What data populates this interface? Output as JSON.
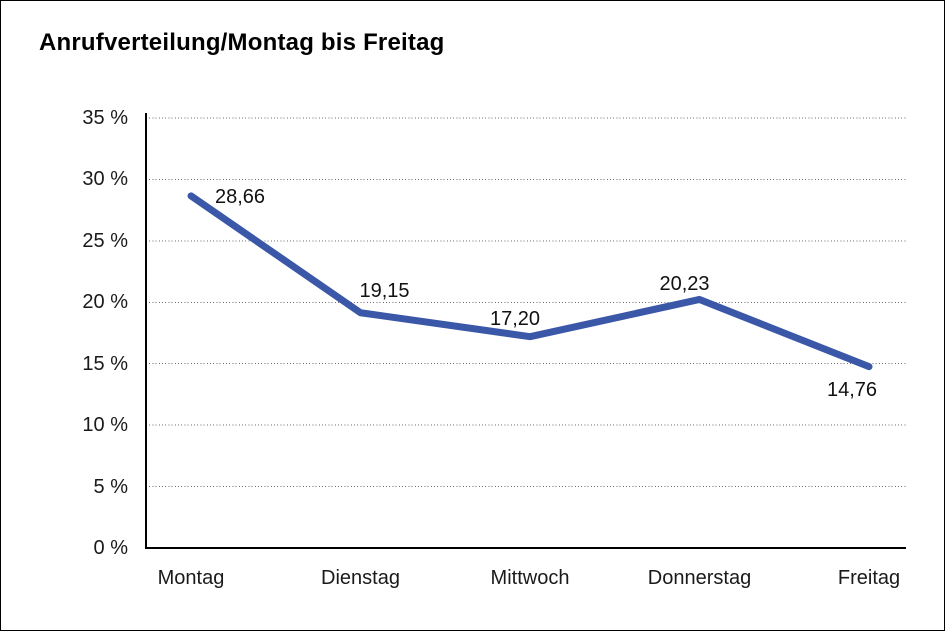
{
  "frame": {
    "background": "#ffffff",
    "border_color": "#000000"
  },
  "chart_data": {
    "type": "line",
    "title": "Anrufverteilung/Montag bis Freitag",
    "categories": [
      "Montag",
      "Dienstag",
      "Mittwoch",
      "Donnerstag",
      "Freitag"
    ],
    "series": [
      {
        "name": "Anrufverteilung",
        "values": [
          28.66,
          19.15,
          17.2,
          20.23,
          14.76
        ],
        "color": "#3A57A8"
      }
    ],
    "point_labels": [
      "28,66",
      "19,15",
      "17,20",
      "20,23",
      "14,76"
    ],
    "y_ticks": [
      {
        "value": 0,
        "label": "0 %"
      },
      {
        "value": 5,
        "label": "5 %"
      },
      {
        "value": 10,
        "label": "10 %"
      },
      {
        "value": 15,
        "label": "15 %"
      },
      {
        "value": 20,
        "label": "20 %"
      },
      {
        "value": 25,
        "label": "25 %"
      },
      {
        "value": 30,
        "label": "30 %"
      },
      {
        "value": 35,
        "label": "35 %"
      }
    ],
    "ylim": [
      0,
      35
    ],
    "xlabel": "",
    "ylabel": "",
    "grid": "horizontal-dotted",
    "grid_color": "#6b6b6b",
    "axis_color": "#000000",
    "legend": "none"
  }
}
